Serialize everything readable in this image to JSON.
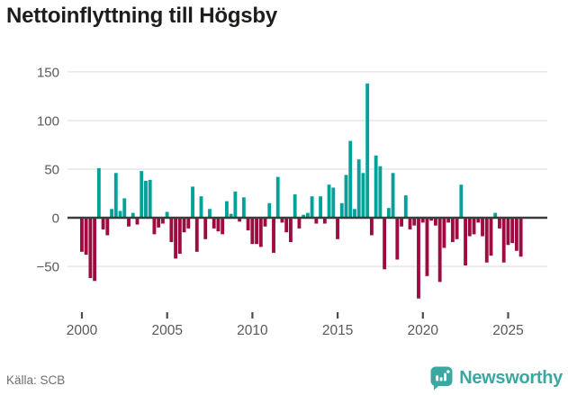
{
  "header": {
    "title": "Nettoinflyttning till Högsby"
  },
  "footer": {
    "source": "Källa: SCB",
    "brand": "Newsworthy"
  },
  "colors": {
    "positive_bar": "#00a29a",
    "negative_bar": "#9e0b40",
    "brand_teal": "#3aa8a1",
    "grid_line": "#e8e8e8",
    "zero_line": "#3c3c3c",
    "axis_text": "#58595b",
    "tick_mark": "#4d4d4d",
    "title_text": "#1d1d1b",
    "source_text": "#6e6f71"
  },
  "chart_data": {
    "type": "bar",
    "title": "Nettoinflyttning till Högsby",
    "xlabel": "",
    "ylabel": "",
    "x_unit": "quarter",
    "start_period": "2000 Q1",
    "end_period": "2025 Q4",
    "ylim": [
      -95,
      160
    ],
    "grid": true,
    "y_ticks": [
      150,
      100,
      50,
      0,
      -50
    ],
    "y_tick_labels": [
      "150",
      "100",
      "50",
      "0",
      "−50"
    ],
    "x_tick_years": [
      2000,
      2005,
      2010,
      2015,
      2020,
      2025
    ],
    "x_tick_labels": [
      "2000",
      "2005",
      "2010",
      "2015",
      "2020",
      "2025"
    ],
    "series": [
      {
        "name": "Nettoinflyttning",
        "values": [
          -35,
          -38,
          -62,
          -65,
          51,
          -12,
          -18,
          9,
          46,
          7,
          20,
          -9,
          5,
          -7,
          48,
          38,
          39,
          -17,
          -10,
          -6,
          6,
          -25,
          -42,
          -37,
          -15,
          -11,
          32,
          -35,
          22,
          -22,
          9,
          -11,
          -14,
          -17,
          17,
          4,
          27,
          -4,
          21,
          -13,
          -27,
          -27,
          -30,
          -9,
          15,
          -36,
          42,
          -5,
          -15,
          -25,
          24,
          -11,
          3,
          5,
          22,
          -6,
          22,
          -6,
          34,
          31,
          -22,
          15,
          44,
          79,
          9,
          60,
          46,
          138,
          -18,
          64,
          53,
          -53,
          10,
          46,
          -43,
          -9,
          23,
          -12,
          -8,
          -83,
          -5,
          -60,
          -3,
          -8,
          -66,
          -31,
          -5,
          -25,
          -22,
          34,
          -49,
          -19,
          -17,
          -5,
          -19,
          -46,
          -39,
          5,
          -11,
          -46,
          -28,
          -26,
          -34,
          -40
        ]
      }
    ]
  }
}
